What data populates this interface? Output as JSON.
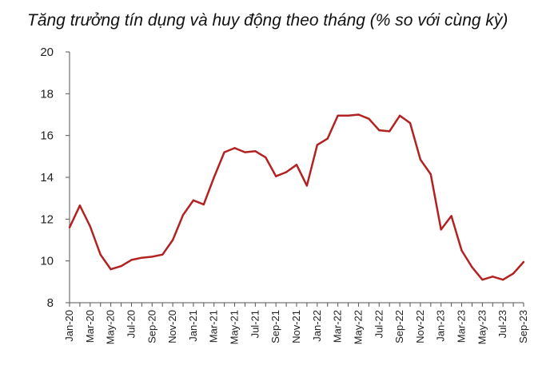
{
  "chart_data": {
    "type": "line",
    "title": "Tăng trưởng tín dụng và huy động theo tháng (% so với cùng kỳ)",
    "xlabel": "",
    "ylabel": "",
    "ylim": [
      8,
      20
    ],
    "yticks": [
      8,
      10,
      12,
      14,
      16,
      18,
      20
    ],
    "grid": false,
    "line_color": "#b22222",
    "x": [
      "Jan-20",
      "Feb-20",
      "Mar-20",
      "Apr-20",
      "May-20",
      "Jun-20",
      "Jul-20",
      "Aug-20",
      "Sep-20",
      "Oct-20",
      "Nov-20",
      "Dec-20",
      "Jan-21",
      "Feb-21",
      "Mar-21",
      "Apr-21",
      "May-21",
      "Jun-21",
      "Jul-21",
      "Aug-21",
      "Sep-21",
      "Oct-21",
      "Nov-21",
      "Dec-21",
      "Jan-22",
      "Feb-22",
      "Mar-22",
      "Apr-22",
      "May-22",
      "Jun-22",
      "Jul-22",
      "Aug-22",
      "Sep-22",
      "Oct-22",
      "Nov-22",
      "Dec-22",
      "Jan-23",
      "Feb-23",
      "Mar-23",
      "Apr-23",
      "May-23",
      "Jun-23",
      "Jul-23",
      "Aug-23",
      "Sep-23"
    ],
    "x_tick_labels": [
      "Jan-20",
      "Mar-20",
      "May-20",
      "Jul-20",
      "Sep-20",
      "Nov-20",
      "Jan-21",
      "Mar-21",
      "May-21",
      "Jul-21",
      "Sep-21",
      "Nov-21",
      "Jan-22",
      "Mar-22",
      "May-22",
      "Jul-22",
      "Sep-22",
      "Nov-22",
      "Jan-23",
      "Mar-23",
      "May-23",
      "Jul-23",
      "Sep-23"
    ],
    "series": [
      {
        "values": [
          11.6,
          12.65,
          11.65,
          10.3,
          9.6,
          9.75,
          10.05,
          10.15,
          10.2,
          10.3,
          11.0,
          12.2,
          12.9,
          12.7,
          14.0,
          15.2,
          15.4,
          15.2,
          15.25,
          14.95,
          14.05,
          14.25,
          14.6,
          13.6,
          15.55,
          15.85,
          16.95,
          16.95,
          17.0,
          16.8,
          16.25,
          16.2,
          16.95,
          16.6,
          14.85,
          14.15,
          11.5,
          12.15,
          10.5,
          9.7,
          9.1,
          9.25,
          9.1,
          9.4,
          9.95
        ]
      }
    ]
  }
}
